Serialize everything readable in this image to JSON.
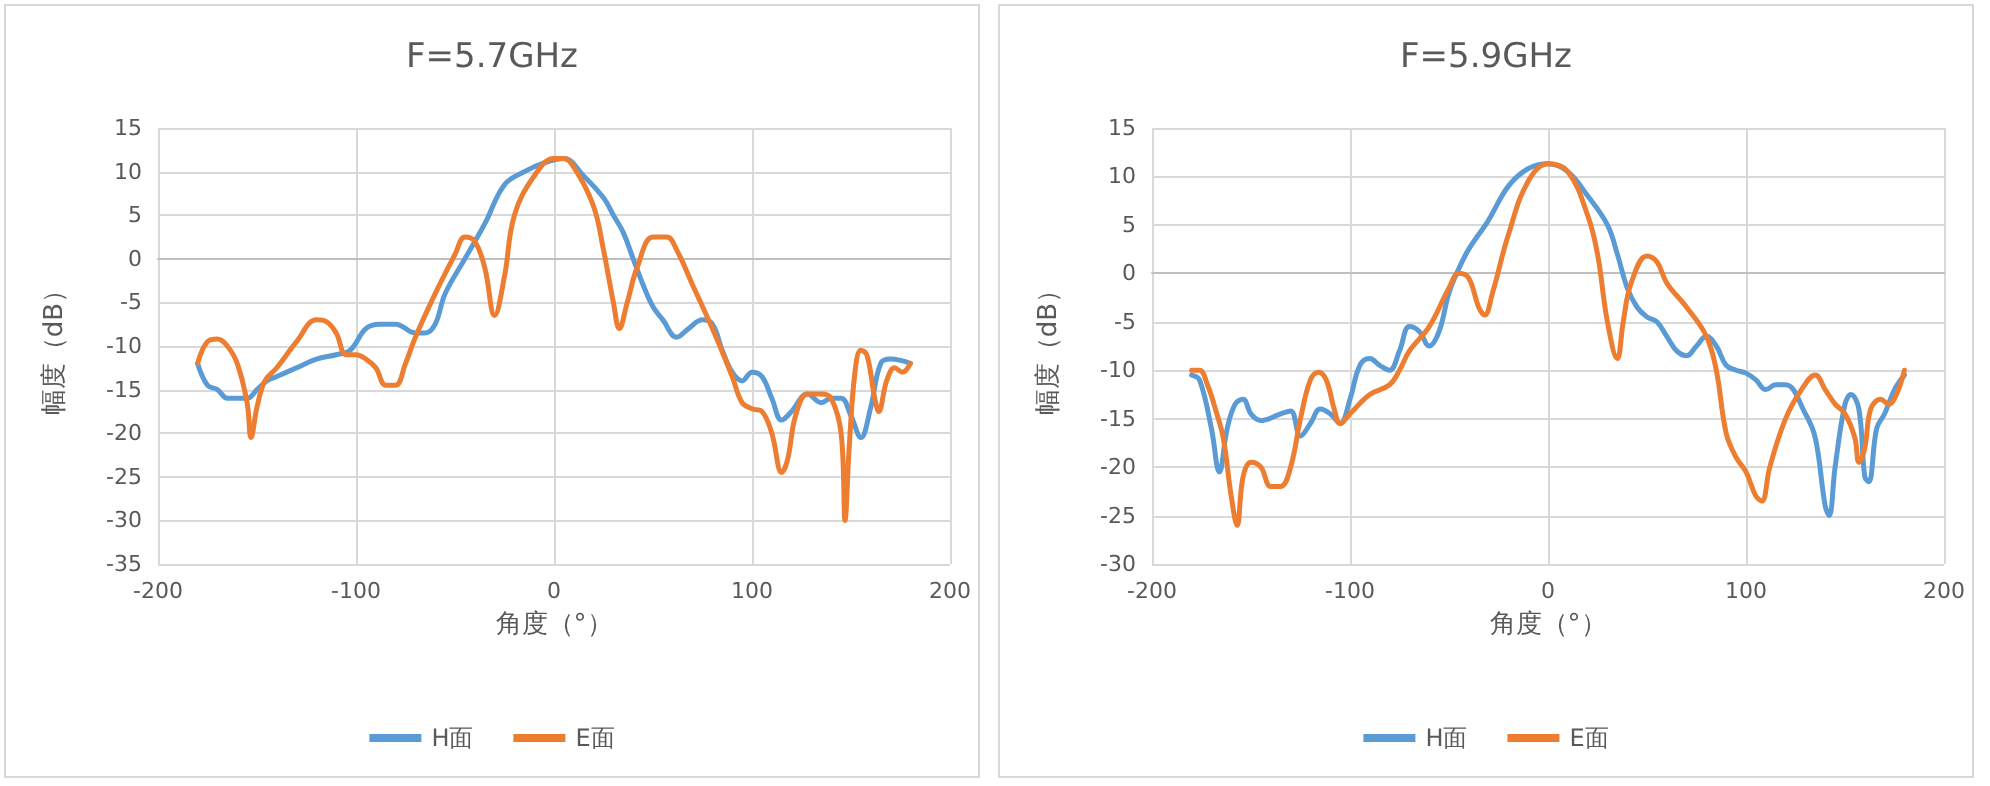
{
  "chart_data": [
    {
      "type": "line",
      "title": "F=5.7GHz",
      "xlabel": "角度（°）",
      "ylabel": "幅度（dB）",
      "xlim": [
        -200,
        200
      ],
      "xticks": [
        -200,
        -100,
        0,
        100,
        200
      ],
      "ylim": [
        -35,
        15
      ],
      "yticks": [
        -35,
        -30,
        -25,
        -20,
        -15,
        -10,
        -5,
        0,
        5,
        10,
        15
      ],
      "grid": true,
      "legend": "bottom",
      "marker": "none",
      "line_style": "solid",
      "series": [
        {
          "name": "H面",
          "color": "#5b9bd5",
          "x": [
            -180,
            -175,
            -170,
            -165,
            -160,
            -155,
            -150,
            -145,
            -140,
            -130,
            -120,
            -110,
            -103,
            -95,
            -88,
            -80,
            -70,
            -65,
            -60,
            -55,
            -45,
            -35,
            -25,
            -15,
            -5,
            5,
            15,
            25,
            30,
            35,
            40,
            45,
            50,
            55,
            62,
            68,
            75,
            80,
            85,
            90,
            95,
            100,
            105,
            110,
            115,
            120,
            128,
            135,
            140,
            145,
            150,
            155,
            160,
            165,
            170,
            180
          ],
          "values": [
            -12,
            -14.5,
            -15,
            -16,
            -16,
            -16,
            -15,
            -14,
            -13.5,
            -12.5,
            -11.5,
            -11,
            -10.5,
            -8,
            -7.5,
            -7.5,
            -8.5,
            -8.5,
            -7.5,
            -4,
            0,
            4,
            8.5,
            10,
            11,
            11.5,
            9.5,
            7,
            5,
            3,
            0,
            -3,
            -5.5,
            -7,
            -9,
            -8,
            -7,
            -7.5,
            -10.5,
            -13,
            -14,
            -13,
            -13.5,
            -16,
            -18.5,
            -17.5,
            -15.5,
            -16.5,
            -16,
            -16,
            -18,
            -20.5,
            -17,
            -12,
            -11.5,
            -12
          ]
        },
        {
          "name": "E面",
          "color": "#ed7d31",
          "x": [
            -180,
            -175,
            -170,
            -165,
            -160,
            -155,
            -153,
            -150,
            -146,
            -140,
            -130,
            -120,
            -115,
            -110,
            -105,
            -100,
            -95,
            -90,
            -85,
            -80,
            -75,
            -70,
            -60,
            -50,
            -45,
            -40,
            -35,
            -30,
            -25,
            -20,
            -10,
            0,
            5,
            10,
            20,
            25,
            30,
            33,
            37,
            42,
            50,
            57,
            62,
            70,
            80,
            90,
            95,
            100,
            105,
            110,
            115,
            118,
            122,
            128,
            135,
            140,
            145,
            147,
            149,
            152,
            155,
            158,
            162,
            164,
            168,
            172,
            176,
            180
          ],
          "values": [
            -12,
            -9.5,
            -9.2,
            -10,
            -12,
            -16.5,
            -20.5,
            -17,
            -14,
            -12.5,
            -9.5,
            -7,
            -7.2,
            -8.5,
            -11,
            -11,
            -11.5,
            -12.5,
            -14.5,
            -14.5,
            -12,
            -9,
            -4,
            0.5,
            2.5,
            2,
            -1,
            -6.5,
            -2,
            5,
            9.5,
            11.5,
            11.5,
            10.5,
            6,
            1,
            -5,
            -8,
            -5,
            -1,
            2.5,
            2.5,
            1,
            -3,
            -8,
            -13.5,
            -16.5,
            -17.2,
            -17.5,
            -20,
            -24.5,
            -23,
            -18,
            -15.5,
            -15.5,
            -16,
            -20,
            -30,
            -22,
            -13,
            -10.5,
            -11,
            -16,
            -17.5,
            -14,
            -12.5,
            -13,
            -12
          ]
        }
      ]
    },
    {
      "type": "line",
      "title": "F=5.9GHz",
      "xlabel": "角度（°）",
      "ylabel": "幅度（dB）",
      "xlim": [
        -200,
        200
      ],
      "xticks": [
        -200,
        -100,
        0,
        100,
        200
      ],
      "ylim": [
        -30,
        15
      ],
      "yticks": [
        -30,
        -25,
        -20,
        -15,
        -10,
        -5,
        0,
        5,
        10,
        15
      ],
      "grid": true,
      "legend": "bottom",
      "marker": "none",
      "line_style": "solid",
      "series": [
        {
          "name": "H面",
          "color": "#5b9bd5",
          "x": [
            -180,
            -176,
            -170,
            -166,
            -162,
            -158,
            -154,
            -150,
            -145,
            -135,
            -130,
            -125,
            -120,
            -115,
            -110,
            -105,
            -100,
            -95,
            -90,
            -85,
            -80,
            -75,
            -70,
            -65,
            -60,
            -55,
            -50,
            -45,
            -40,
            -30,
            -20,
            -10,
            0,
            10,
            20,
            30,
            35,
            40,
            45,
            50,
            55,
            60,
            65,
            70,
            75,
            80,
            85,
            90,
            95,
            100,
            105,
            110,
            115,
            120,
            130,
            135,
            140,
            142,
            145,
            150,
            153,
            157,
            160,
            162,
            166,
            170,
            175,
            180
          ],
          "values": [
            -10.5,
            -11,
            -16,
            -20.5,
            -16,
            -13.5,
            -13,
            -14.5,
            -15.2,
            -14.5,
            -14.2,
            -16.8,
            -15.5,
            -14,
            -14.5,
            -15.5,
            -13,
            -9.5,
            -8.8,
            -9.5,
            -10,
            -8,
            -5.5,
            -6,
            -7.5,
            -6,
            -2,
            0.5,
            2.5,
            5.5,
            9,
            10.8,
            11.3,
            10.5,
            8,
            5,
            2,
            -1.5,
            -3.5,
            -4.5,
            -5,
            -6.5,
            -8,
            -8.5,
            -7.5,
            -6.5,
            -7.5,
            -9.5,
            -10,
            -10.3,
            -11,
            -12,
            -11.5,
            -11.5,
            -14.5,
            -17,
            -24,
            -25,
            -20,
            -13.5,
            -12.5,
            -14,
            -21,
            -21.5,
            -16,
            -14.5,
            -12,
            -10.5
          ]
        },
        {
          "name": "E面",
          "color": "#ed7d31",
          "x": [
            -180,
            -176,
            -172,
            -168,
            -164,
            -160,
            -157,
            -154,
            -150,
            -145,
            -140,
            -135,
            -130,
            -125,
            -120,
            -116,
            -112,
            -108,
            -105,
            -100,
            -90,
            -80,
            -75,
            -70,
            -60,
            -50,
            -45,
            -40,
            -35,
            -32,
            -28,
            -20,
            -10,
            0,
            10,
            20,
            25,
            30,
            35,
            38,
            42,
            50,
            55,
            60,
            70,
            80,
            85,
            90,
            95,
            100,
            105,
            108,
            112,
            120,
            128,
            135,
            140,
            145,
            150,
            155,
            157,
            160,
            163,
            168,
            172,
            176,
            180
          ],
          "values": [
            -10,
            -10,
            -11.5,
            -14,
            -17,
            -23,
            -26,
            -21,
            -19.5,
            -20,
            -22,
            -22,
            -20,
            -15,
            -11,
            -10.2,
            -11,
            -14,
            -15.5,
            -14.5,
            -12.5,
            -11.5,
            -10,
            -8,
            -5.5,
            -1.5,
            0,
            -0.5,
            -3.5,
            -4.3,
            -2,
            4,
            9.5,
            11.3,
            10.5,
            6,
            2,
            -5,
            -8.8,
            -5,
            -1,
            1.8,
            1.2,
            -1,
            -3.5,
            -6.5,
            -10,
            -16.5,
            -19,
            -20.5,
            -23,
            -23.5,
            -20,
            -15,
            -12,
            -10.5,
            -12,
            -13.5,
            -14.5,
            -17,
            -19.5,
            -18,
            -14,
            -13,
            -13.5,
            -12.5,
            -10
          ]
        }
      ]
    }
  ]
}
